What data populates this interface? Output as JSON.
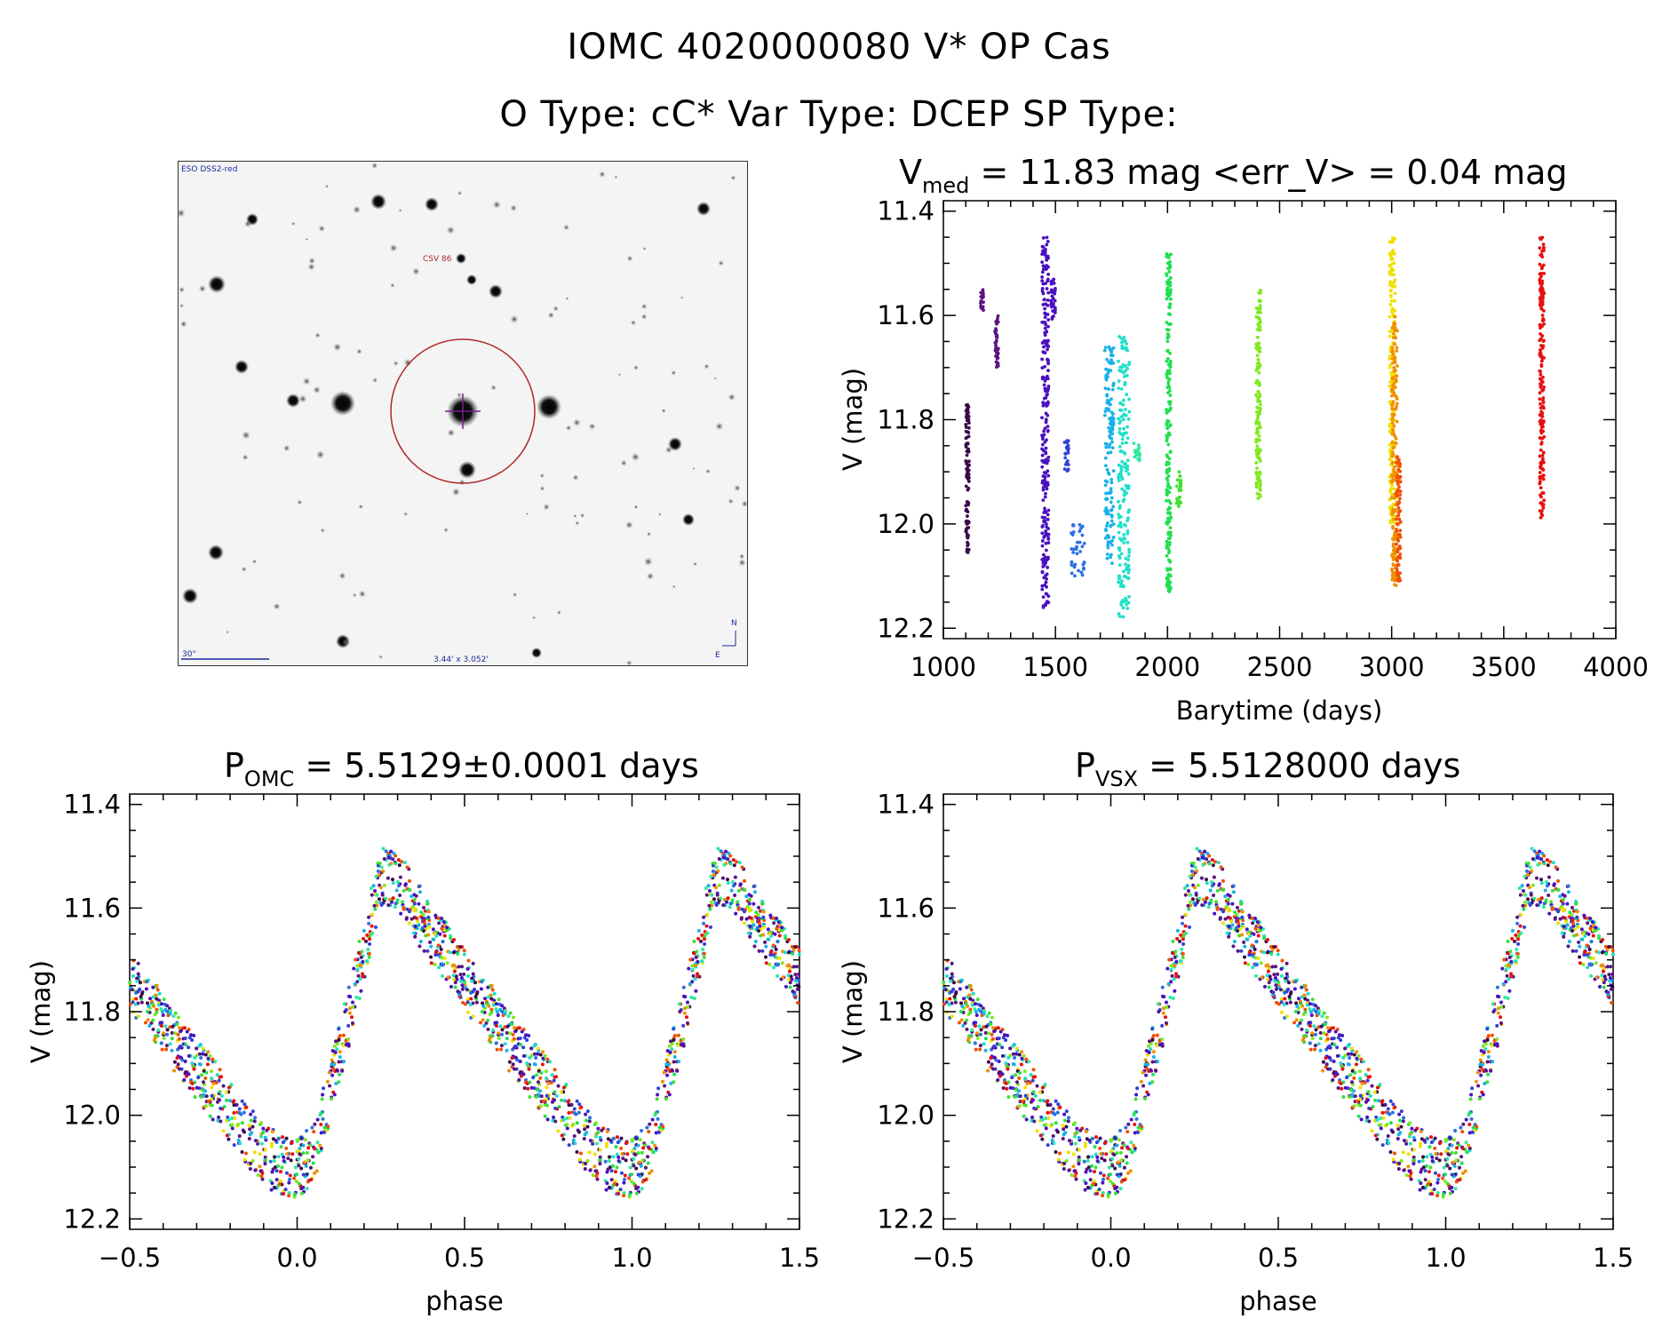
{
  "figure": {
    "title_line1": "IOMC 4020000080   V* OP Cas",
    "title_line2": "O Type: cC*  Var Type: DCEP  SP Type:"
  },
  "image_panel": {
    "survey_label": "ESO DSS2-red",
    "object_label": "CSV 86",
    "scale_label": "30\"",
    "size_label": "3.44' x 3.052'",
    "north_label": "N",
    "east_label": "E",
    "colors": {
      "circle": "#b0282a",
      "crosshair": "#7a1d8c",
      "scalebar": "#1b2a9a"
    }
  },
  "panels": {
    "lc": {
      "title_main": "V",
      "title_sub": "med",
      "title_rest": " = 11.83 mag <err_V> = 0.04 mag",
      "xlabel": "Barytime (days)",
      "ylabel": "V (mag)",
      "xticks": [
        "1000",
        "1500",
        "2000",
        "2500",
        "3000",
        "3500",
        "4000"
      ],
      "yticks": [
        "11.4",
        "11.6",
        "11.8",
        "12.0",
        "12.2"
      ]
    },
    "phase_omc": {
      "title_main": "P",
      "title_sub": "OMC",
      "title_rest": " = 5.5129±0.0001 days",
      "xlabel": "phase",
      "ylabel": "V (mag)",
      "xticks": [
        "−0.5",
        "0.0",
        "0.5",
        "1.0",
        "1.5"
      ],
      "yticks": [
        "11.4",
        "11.6",
        "11.8",
        "12.0",
        "12.2"
      ]
    },
    "phase_vsx": {
      "title_main": "P",
      "title_sub": "VSX",
      "title_rest": " = 5.5128000 days",
      "xlabel": "phase",
      "ylabel": "V (mag)",
      "xticks": [
        "−0.5",
        "0.0",
        "0.5",
        "1.0",
        "1.5"
      ],
      "yticks": [
        "11.4",
        "11.6",
        "11.8",
        "12.0",
        "12.2"
      ]
    }
  },
  "chart_data": [
    {
      "type": "scatter",
      "title": "V_med = 11.83 mag <err_V> = 0.04 mag",
      "xlabel": "Barytime (days)",
      "ylabel": "V (mag)",
      "xlim": [
        1000,
        4000
      ],
      "ylim": [
        12.2,
        11.4
      ],
      "y_inverted": true,
      "grid": false,
      "color_map": "rainbow by observation epoch (purple → red)",
      "epochs": [
        {
          "x_range": [
            1100,
            1115
          ],
          "y_range": [
            11.77,
            12.06
          ],
          "color": "#3a0a4a"
        },
        {
          "x_range": [
            1165,
            1180
          ],
          "y_range": [
            11.55,
            11.59
          ],
          "color": "#5a1480"
        },
        {
          "x_range": [
            1230,
            1245
          ],
          "y_range": [
            11.6,
            11.7
          ],
          "color": "#5a1480"
        },
        {
          "x_range": [
            1440,
            1470
          ],
          "y_range": [
            11.45,
            12.18
          ],
          "color": "#4a10c0"
        },
        {
          "x_range": [
            1480,
            1500
          ],
          "y_range": [
            11.53,
            11.61
          ],
          "color": "#4a10c0"
        },
        {
          "x_range": [
            1540,
            1560
          ],
          "y_range": [
            11.84,
            11.9
          ],
          "color": "#3040d8"
        },
        {
          "x_range": [
            1570,
            1630
          ],
          "y_range": [
            12.0,
            12.1
          ],
          "color": "#2a70e0"
        },
        {
          "x_range": [
            1720,
            1760
          ],
          "y_range": [
            11.66,
            12.08
          ],
          "color": "#1ab0e8"
        },
        {
          "x_range": [
            1780,
            1830
          ],
          "y_range": [
            11.64,
            12.18
          ],
          "color": "#20e0c8"
        },
        {
          "x_range": [
            1850,
            1880
          ],
          "y_range": [
            11.84,
            11.88
          ],
          "color": "#30e8a0"
        },
        {
          "x_range": [
            1995,
            2015
          ],
          "y_range": [
            11.48,
            12.13
          ],
          "color": "#20e050"
        },
        {
          "x_range": [
            2040,
            2060
          ],
          "y_range": [
            11.9,
            11.97
          ],
          "color": "#40e030"
        },
        {
          "x_range": [
            2395,
            2415
          ],
          "y_range": [
            11.55,
            11.96
          ],
          "color": "#80e820"
        },
        {
          "x_range": [
            2990,
            3015
          ],
          "y_range": [
            11.45,
            12.0
          ],
          "color": "#f0e000"
        },
        {
          "x_range": [
            3000,
            3025
          ],
          "y_range": [
            11.6,
            12.12
          ],
          "color": "#f09000"
        },
        {
          "x_range": [
            3020,
            3040
          ],
          "y_range": [
            11.87,
            12.11
          ],
          "color": "#f05000"
        },
        {
          "x_range": [
            3660,
            3680
          ],
          "y_range": [
            11.45,
            11.99
          ],
          "color": "#e81010"
        }
      ]
    },
    {
      "type": "scatter",
      "title": "P_OMC = 5.5129±0.0001 days",
      "xlabel": "phase",
      "ylabel": "V (mag)",
      "xlim": [
        -0.5,
        1.5
      ],
      "ylim": [
        12.2,
        11.4
      ],
      "y_inverted": true,
      "period_days": 5.5129,
      "period_error_days": 0.0001,
      "light_curve_shape": [
        {
          "phase": 0.0,
          "V": 12.1
        },
        {
          "phase": 0.05,
          "V": 12.07
        },
        {
          "phase": 0.1,
          "V": 11.95
        },
        {
          "phase": 0.15,
          "V": 11.82
        },
        {
          "phase": 0.2,
          "V": 11.68
        },
        {
          "phase": 0.25,
          "V": 11.54
        },
        {
          "phase": 0.3,
          "V": 11.54
        },
        {
          "phase": 0.35,
          "V": 11.6
        },
        {
          "phase": 0.45,
          "V": 11.69
        },
        {
          "phase": 0.55,
          "V": 11.78
        },
        {
          "phase": 0.65,
          "V": 11.87
        },
        {
          "phase": 0.75,
          "V": 11.95
        },
        {
          "phase": 0.85,
          "V": 12.04
        },
        {
          "phase": 0.95,
          "V": 12.1
        },
        {
          "phase": 1.0,
          "V": 12.1
        }
      ]
    },
    {
      "type": "scatter",
      "title": "P_VSX = 5.5128000 days",
      "xlabel": "phase",
      "ylabel": "V (mag)",
      "xlim": [
        -0.5,
        1.5
      ],
      "ylim": [
        12.2,
        11.4
      ],
      "y_inverted": true,
      "period_days": 5.5128
    }
  ]
}
